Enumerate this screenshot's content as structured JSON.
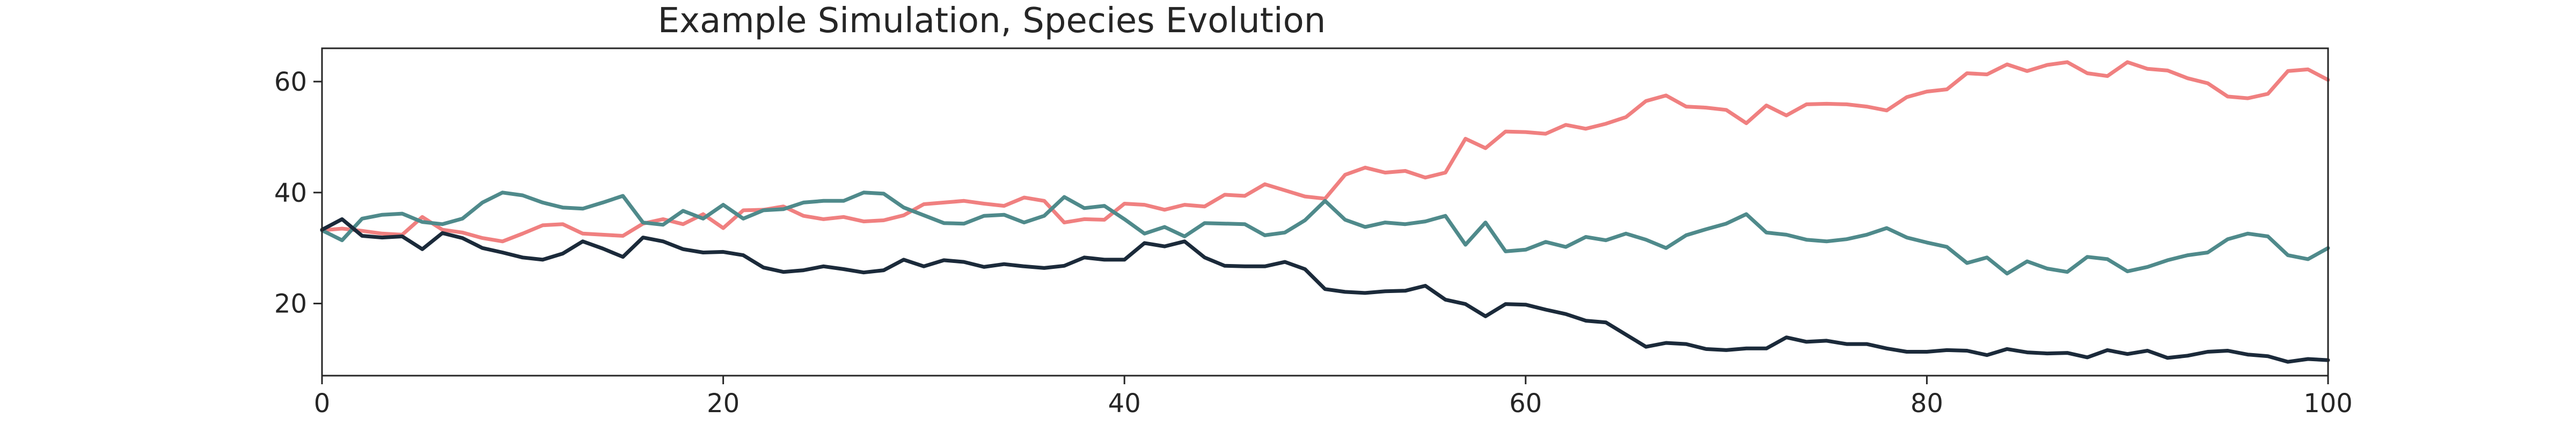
{
  "chart_data": {
    "type": "line",
    "title": "Example Simulation, Species Evolution",
    "xlabel": "",
    "ylabel": "",
    "xlim": [
      0,
      100
    ],
    "ylim": [
      7,
      66
    ],
    "xticks": [
      0,
      20,
      40,
      60,
      80,
      100
    ],
    "yticks": [
      20,
      40,
      60
    ],
    "grid": false,
    "legend": "none",
    "x": [
      0,
      1,
      2,
      3,
      4,
      5,
      6,
      7,
      8,
      9,
      10,
      11,
      12,
      13,
      14,
      15,
      16,
      17,
      18,
      19,
      20,
      21,
      22,
      23,
      24,
      25,
      26,
      27,
      28,
      29,
      30,
      31,
      32,
      33,
      34,
      35,
      36,
      37,
      38,
      39,
      40,
      41,
      42,
      43,
      44,
      45,
      46,
      47,
      48,
      49,
      50,
      51,
      52,
      53,
      54,
      55,
      56,
      57,
      58,
      59,
      60,
      61,
      62,
      63,
      64,
      65,
      66,
      67,
      68,
      69,
      70,
      71,
      72,
      73,
      74,
      75,
      76,
      77,
      78,
      79,
      80,
      81,
      82,
      83,
      84,
      85,
      86,
      87,
      88,
      89,
      90,
      91,
      92,
      93,
      94,
      95,
      96,
      97,
      98,
      99,
      100
    ],
    "series": [
      {
        "color": "#f08080",
        "values": [
          33.2,
          33.5,
          33.1,
          32.6,
          32.4,
          35.6,
          33.3,
          32.8,
          31.8,
          31.2,
          32.6,
          34.1,
          34.3,
          32.6,
          32.4,
          32.2,
          34.4,
          35.2,
          34.3,
          36.1,
          33.6,
          36.8,
          36.9,
          37.5,
          35.8,
          35.2,
          35.6,
          34.8,
          35.0,
          35.9,
          37.9,
          38.2,
          38.5,
          38.0,
          37.6,
          39.1,
          38.5,
          34.6,
          35.2,
          35.1,
          38.0,
          37.8,
          36.9,
          37.8,
          37.5,
          39.6,
          39.4,
          41.5,
          40.4,
          39.3,
          38.9,
          43.2,
          44.5,
          43.6,
          43.9,
          42.7,
          43.6,
          49.7,
          48.0,
          51.0,
          50.9,
          50.6,
          52.2,
          51.5,
          52.4,
          53.6,
          56.5,
          57.5,
          55.5,
          55.3,
          54.9,
          52.5,
          55.7,
          53.9,
          55.9,
          56.0,
          55.9,
          55.5,
          54.8,
          57.2,
          58.2,
          58.6,
          61.5,
          61.3,
          63.1,
          61.9,
          63.0,
          63.5,
          61.5,
          61.0,
          63.5,
          62.3,
          62.0,
          60.6,
          59.7,
          57.3,
          57.0,
          57.8,
          61.9,
          62.2,
          60.3
        ]
      },
      {
        "color": "#4f8a8b",
        "values": [
          33.2,
          31.4,
          35.3,
          36.0,
          36.2,
          34.7,
          34.3,
          35.3,
          38.2,
          40.0,
          39.5,
          38.2,
          37.3,
          37.1,
          38.2,
          39.4,
          34.6,
          34.2,
          36.7,
          35.3,
          37.8,
          35.3,
          36.8,
          37.0,
          38.2,
          38.5,
          38.5,
          40.0,
          39.8,
          37.3,
          35.9,
          34.5,
          34.4,
          35.8,
          36.0,
          34.6,
          35.8,
          39.2,
          37.2,
          37.6,
          35.2,
          32.6,
          33.8,
          32.1,
          34.5,
          34.4,
          34.3,
          32.3,
          32.8,
          35.0,
          38.5,
          35.1,
          33.8,
          34.6,
          34.3,
          34.8,
          35.8,
          30.6,
          34.6,
          29.4,
          29.7,
          31.1,
          30.2,
          32.0,
          31.4,
          32.6,
          31.5,
          30.0,
          32.3,
          33.4,
          34.4,
          36.1,
          32.8,
          32.4,
          31.5,
          31.2,
          31.6,
          32.4,
          33.6,
          31.9,
          31.0,
          30.2,
          27.3,
          28.3,
          25.4,
          27.6,
          26.3,
          25.7,
          28.4,
          28.0,
          25.8,
          26.6,
          27.8,
          28.7,
          29.2,
          31.6,
          32.6,
          32.1,
          28.7,
          28.0,
          30.0
        ]
      },
      {
        "color": "#1b2a3a",
        "values": [
          33.3,
          35.2,
          32.2,
          31.9,
          32.1,
          29.8,
          32.7,
          31.8,
          30.0,
          29.2,
          28.3,
          27.9,
          29.0,
          31.2,
          29.9,
          28.4,
          31.9,
          31.2,
          29.8,
          29.2,
          29.3,
          28.7,
          26.5,
          25.7,
          26.0,
          26.7,
          26.2,
          25.6,
          26.0,
          27.9,
          26.7,
          27.8,
          27.5,
          26.6,
          27.1,
          26.7,
          26.4,
          26.8,
          28.3,
          27.9,
          27.9,
          30.9,
          30.3,
          31.2,
          28.3,
          26.8,
          26.7,
          26.7,
          27.5,
          26.2,
          22.6,
          22.1,
          21.9,
          22.2,
          22.3,
          23.2,
          20.7,
          19.9,
          17.7,
          19.9,
          19.8,
          18.9,
          18.1,
          16.9,
          16.6,
          14.4,
          12.2,
          12.9,
          12.7,
          11.8,
          11.6,
          11.9,
          11.9,
          13.9,
          13.1,
          13.3,
          12.7,
          12.7,
          11.9,
          11.3,
          11.3,
          11.6,
          11.5,
          10.7,
          11.8,
          11.2,
          11.0,
          11.1,
          10.3,
          11.6,
          10.9,
          11.5,
          10.2,
          10.6,
          11.3,
          11.5,
          10.8,
          10.5,
          9.5,
          10.0,
          9.8
        ]
      }
    ]
  }
}
